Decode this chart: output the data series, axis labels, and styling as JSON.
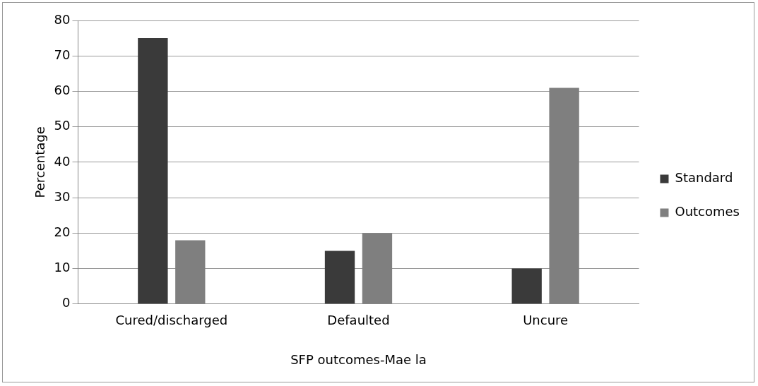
{
  "chart_data": {
    "type": "bar",
    "xlabel": "SFP outcomes-Mae la",
    "ylabel": "Percentage",
    "categories": [
      "Cured/discharged",
      "Defaulted",
      "Uncure"
    ],
    "series": [
      {
        "name": "Standard",
        "color": "#3a3a3a",
        "values": [
          75,
          15,
          10
        ]
      },
      {
        "name": "Outcomes",
        "color": "#7f7f7f",
        "values": [
          18,
          20,
          61
        ]
      }
    ],
    "ylim": [
      0,
      80
    ],
    "yticks": [
      0,
      10,
      20,
      30,
      40,
      50,
      60,
      70,
      80
    ],
    "grid": "y",
    "legend": "right"
  }
}
